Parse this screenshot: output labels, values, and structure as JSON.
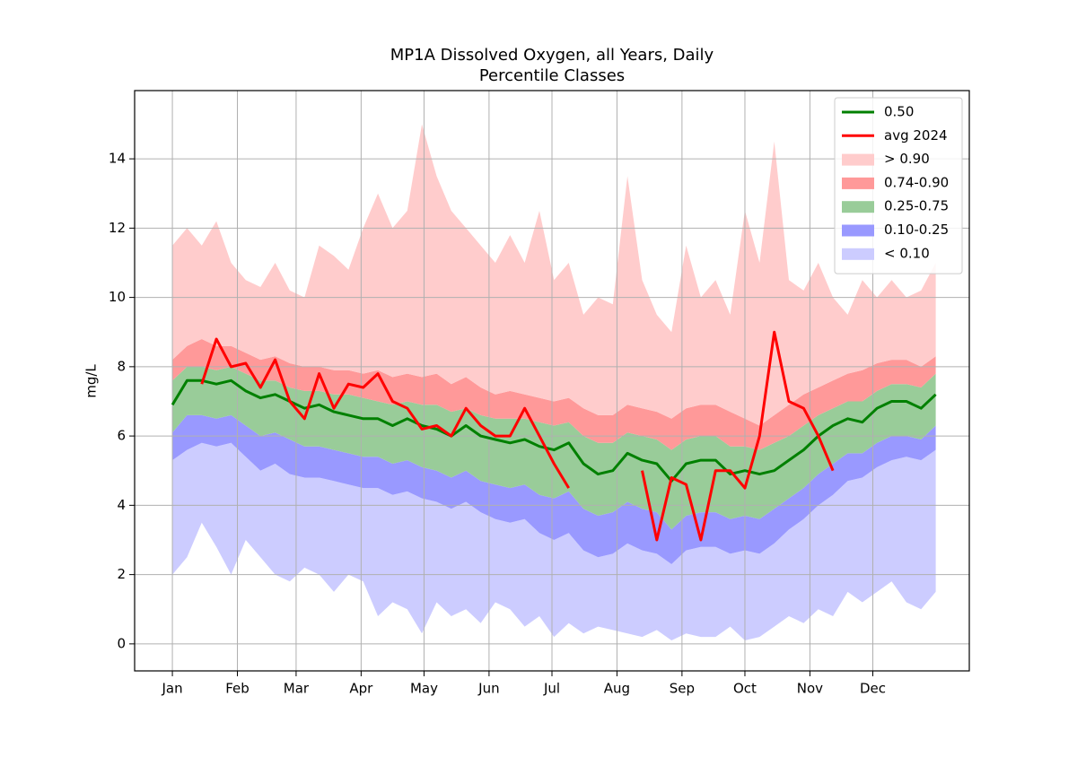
{
  "chart_data": {
    "type": "line",
    "title": "MP1A Dissolved Oxygen, all Years, Daily",
    "subtitle": "Percentile Classes",
    "ylabel": "mg/L",
    "x": [
      1,
      8,
      15,
      22,
      29,
      36,
      43,
      50,
      57,
      64,
      71,
      78,
      85,
      92,
      99,
      106,
      113,
      120,
      127,
      134,
      141,
      148,
      155,
      162,
      169,
      176,
      183,
      190,
      197,
      204,
      211,
      218,
      225,
      232,
      239,
      246,
      253,
      260,
      267,
      274,
      281,
      288,
      295,
      302,
      309,
      316,
      323,
      330,
      337,
      344,
      351,
      358,
      365
    ],
    "xlim": [
      -17,
      381
    ],
    "xticks": [
      {
        "value": 1,
        "label": "Jan"
      },
      {
        "value": 32,
        "label": "Feb"
      },
      {
        "value": 60,
        "label": "Mar"
      },
      {
        "value": 91,
        "label": "Apr"
      },
      {
        "value": 121,
        "label": "May"
      },
      {
        "value": 152,
        "label": "Jun"
      },
      {
        "value": 182,
        "label": "Jul"
      },
      {
        "value": 213,
        "label": "Aug"
      },
      {
        "value": 244,
        "label": "Sep"
      },
      {
        "value": 274,
        "label": "Oct"
      },
      {
        "value": 305,
        "label": "Nov"
      },
      {
        "value": 335,
        "label": "Dec"
      }
    ],
    "ylim": [
      -0.78,
      15.97
    ],
    "yticks": [
      0,
      2,
      4,
      6,
      8,
      10,
      12,
      14
    ],
    "grid": true,
    "legend": "upper right",
    "series": [
      {
        "name": "0.50",
        "type": "line",
        "color": "#008000",
        "values": [
          6.9,
          7.6,
          7.6,
          7.5,
          7.6,
          7.3,
          7.1,
          7.2,
          7.0,
          6.8,
          6.9,
          6.7,
          6.6,
          6.5,
          6.5,
          6.3,
          6.5,
          6.3,
          6.2,
          6.0,
          6.3,
          6.0,
          5.9,
          5.8,
          5.9,
          5.7,
          5.6,
          5.8,
          5.2,
          4.9,
          5.0,
          5.5,
          5.3,
          5.2,
          4.7,
          5.2,
          5.3,
          5.3,
          4.9,
          5.0,
          4.9,
          5.0,
          5.3,
          5.6,
          6.0,
          6.3,
          6.5,
          6.4,
          6.8,
          7.0,
          7.0,
          6.8,
          7.2
        ]
      },
      {
        "name": "avg 2024",
        "type": "line",
        "color": "#ff0000",
        "values": [
          null,
          null,
          7.5,
          8.8,
          8.0,
          8.1,
          7.4,
          8.2,
          7.0,
          6.5,
          7.8,
          6.8,
          7.5,
          7.4,
          7.8,
          7.0,
          6.8,
          6.2,
          6.3,
          6.0,
          6.8,
          6.3,
          6.0,
          6.0,
          6.8,
          6.0,
          5.2,
          4.5,
          null,
          null,
          null,
          null,
          5.0,
          3.0,
          4.8,
          4.6,
          3.0,
          5.0,
          5.0,
          4.5,
          6.0,
          9.0,
          7.0,
          6.8,
          6.0,
          5.0,
          null,
          null,
          null,
          null,
          null,
          null,
          null
        ]
      },
      {
        "name": "> 0.90",
        "type": "band",
        "color": "#ffcccc",
        "lower": [
          8.2,
          8.6,
          8.8,
          8.6,
          8.6,
          8.4,
          8.2,
          8.3,
          8.1,
          8.0,
          8.0,
          7.9,
          7.9,
          7.8,
          7.9,
          7.7,
          7.8,
          7.7,
          7.8,
          7.5,
          7.7,
          7.4,
          7.2,
          7.3,
          7.2,
          7.1,
          7.0,
          7.1,
          6.8,
          6.6,
          6.6,
          6.9,
          6.8,
          6.7,
          6.5,
          6.8,
          6.9,
          6.9,
          6.7,
          6.5,
          6.3,
          6.6,
          6.9,
          7.2,
          7.4,
          7.6,
          7.8,
          7.9,
          8.1,
          8.2,
          8.2,
          8.0,
          8.3
        ],
        "upper": [
          11.5,
          12.0,
          11.5,
          12.2,
          11.0,
          10.5,
          10.3,
          11.0,
          10.2,
          10.0,
          11.5,
          11.2,
          10.8,
          12.0,
          13.0,
          12.0,
          12.5,
          15.0,
          13.5,
          12.5,
          12.0,
          11.5,
          11.0,
          11.8,
          11.0,
          12.5,
          10.5,
          11.0,
          9.5,
          10.0,
          9.8,
          13.5,
          10.5,
          9.5,
          9.0,
          11.5,
          10.0,
          10.5,
          9.5,
          12.5,
          11.0,
          14.5,
          10.5,
          10.2,
          11.0,
          10.0,
          9.5,
          10.5,
          10.0,
          10.5,
          10.0,
          10.2,
          11.0
        ]
      },
      {
        "name": "0.74-0.90",
        "type": "band",
        "color": "#ff9999",
        "lower": [
          7.6,
          8.0,
          8.0,
          7.9,
          8.0,
          7.8,
          7.6,
          7.6,
          7.4,
          7.3,
          7.3,
          7.2,
          7.2,
          7.1,
          7.0,
          6.9,
          7.0,
          6.9,
          6.9,
          6.7,
          6.8,
          6.6,
          6.5,
          6.5,
          6.5,
          6.4,
          6.3,
          6.4,
          6.0,
          5.8,
          5.8,
          6.1,
          6.0,
          5.9,
          5.6,
          5.9,
          6.0,
          6.0,
          5.7,
          5.7,
          5.6,
          5.8,
          6.0,
          6.3,
          6.6,
          6.8,
          7.0,
          7.0,
          7.3,
          7.5,
          7.5,
          7.4,
          7.8
        ],
        "upper": [
          8.2,
          8.6,
          8.8,
          8.6,
          8.6,
          8.4,
          8.2,
          8.3,
          8.1,
          8.0,
          8.0,
          7.9,
          7.9,
          7.8,
          7.9,
          7.7,
          7.8,
          7.7,
          7.8,
          7.5,
          7.7,
          7.4,
          7.2,
          7.3,
          7.2,
          7.1,
          7.0,
          7.1,
          6.8,
          6.6,
          6.6,
          6.9,
          6.8,
          6.7,
          6.5,
          6.8,
          6.9,
          6.9,
          6.7,
          6.5,
          6.3,
          6.6,
          6.9,
          7.2,
          7.4,
          7.6,
          7.8,
          7.9,
          8.1,
          8.2,
          8.2,
          8.0,
          8.3
        ]
      },
      {
        "name": "0.25-0.75",
        "type": "band",
        "color": "#99cc99",
        "lower": [
          6.1,
          6.6,
          6.6,
          6.5,
          6.6,
          6.3,
          6.0,
          6.1,
          5.9,
          5.7,
          5.7,
          5.6,
          5.5,
          5.4,
          5.4,
          5.2,
          5.3,
          5.1,
          5.0,
          4.8,
          5.0,
          4.7,
          4.6,
          4.5,
          4.6,
          4.3,
          4.2,
          4.4,
          3.9,
          3.7,
          3.8,
          4.1,
          3.9,
          3.8,
          3.3,
          3.7,
          3.8,
          3.8,
          3.6,
          3.7,
          3.6,
          3.9,
          4.2,
          4.5,
          4.9,
          5.2,
          5.5,
          5.5,
          5.8,
          6.0,
          6.0,
          5.9,
          6.3
        ],
        "upper": [
          7.6,
          8.0,
          8.0,
          7.9,
          8.0,
          7.8,
          7.6,
          7.6,
          7.4,
          7.3,
          7.3,
          7.2,
          7.2,
          7.1,
          7.0,
          6.9,
          7.0,
          6.9,
          6.9,
          6.7,
          6.8,
          6.6,
          6.5,
          6.5,
          6.5,
          6.4,
          6.3,
          6.4,
          6.0,
          5.8,
          5.8,
          6.1,
          6.0,
          5.9,
          5.6,
          5.9,
          6.0,
          6.0,
          5.7,
          5.7,
          5.6,
          5.8,
          6.0,
          6.3,
          6.6,
          6.8,
          7.0,
          7.0,
          7.3,
          7.5,
          7.5,
          7.4,
          7.8
        ]
      },
      {
        "name": "0.10-0.25",
        "type": "band",
        "color": "#9999ff",
        "lower": [
          5.3,
          5.6,
          5.8,
          5.7,
          5.8,
          5.4,
          5.0,
          5.2,
          4.9,
          4.8,
          4.8,
          4.7,
          4.6,
          4.5,
          4.5,
          4.3,
          4.4,
          4.2,
          4.1,
          3.9,
          4.1,
          3.8,
          3.6,
          3.5,
          3.6,
          3.2,
          3.0,
          3.2,
          2.7,
          2.5,
          2.6,
          2.9,
          2.7,
          2.6,
          2.3,
          2.7,
          2.8,
          2.8,
          2.6,
          2.7,
          2.6,
          2.9,
          3.3,
          3.6,
          4.0,
          4.3,
          4.7,
          4.8,
          5.1,
          5.3,
          5.4,
          5.3,
          5.6
        ],
        "upper": [
          6.1,
          6.6,
          6.6,
          6.5,
          6.6,
          6.3,
          6.0,
          6.1,
          5.9,
          5.7,
          5.7,
          5.6,
          5.5,
          5.4,
          5.4,
          5.2,
          5.3,
          5.1,
          5.0,
          4.8,
          5.0,
          4.7,
          4.6,
          4.5,
          4.6,
          4.3,
          4.2,
          4.4,
          3.9,
          3.7,
          3.8,
          4.1,
          3.9,
          3.8,
          3.3,
          3.7,
          3.8,
          3.8,
          3.6,
          3.7,
          3.6,
          3.9,
          4.2,
          4.5,
          4.9,
          5.2,
          5.5,
          5.5,
          5.8,
          6.0,
          6.0,
          5.9,
          6.3
        ]
      },
      {
        "name": "< 0.10",
        "type": "band",
        "color": "#ccccff",
        "lower": [
          2.0,
          2.5,
          3.5,
          2.8,
          2.0,
          3.0,
          2.5,
          2.0,
          1.8,
          2.2,
          2.0,
          1.5,
          2.0,
          1.8,
          0.8,
          1.2,
          1.0,
          0.3,
          1.2,
          0.8,
          1.0,
          0.6,
          1.2,
          1.0,
          0.5,
          0.8,
          0.2,
          0.6,
          0.3,
          0.5,
          0.4,
          0.3,
          0.2,
          0.4,
          0.1,
          0.3,
          0.2,
          0.2,
          0.5,
          0.1,
          0.2,
          0.5,
          0.8,
          0.6,
          1.0,
          0.8,
          1.5,
          1.2,
          1.5,
          1.8,
          1.2,
          1.0,
          1.5
        ],
        "upper": [
          5.3,
          5.6,
          5.8,
          5.7,
          5.8,
          5.4,
          5.0,
          5.2,
          4.9,
          4.8,
          4.8,
          4.7,
          4.6,
          4.5,
          4.5,
          4.3,
          4.4,
          4.2,
          4.1,
          3.9,
          4.1,
          3.8,
          3.6,
          3.5,
          3.6,
          3.2,
          3.0,
          3.2,
          2.7,
          2.5,
          2.6,
          2.9,
          2.7,
          2.6,
          2.3,
          2.7,
          2.8,
          2.8,
          2.6,
          2.7,
          2.6,
          2.9,
          3.3,
          3.6,
          4.0,
          4.3,
          4.7,
          4.8,
          5.1,
          5.3,
          5.4,
          5.3,
          5.6
        ]
      }
    ]
  }
}
